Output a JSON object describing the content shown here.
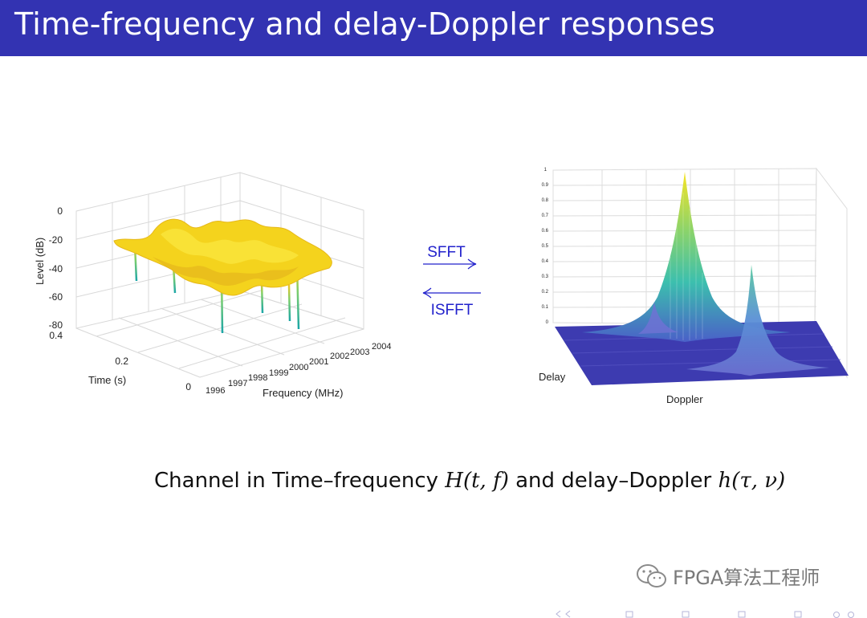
{
  "slide": {
    "title": "Time-frequency and delay-Doppler responses",
    "caption_prefix": "Channel in Time–frequency",
    "caption_tf_symbol": "H(t, f)",
    "caption_middle": "and delay–Doppler",
    "caption_dd_symbol": "h(τ, ν)"
  },
  "transforms": {
    "forward_label": "SFFT",
    "inverse_label": "ISFFT",
    "color": "#2222cc"
  },
  "left_plot": {
    "zlabel": "Level (dB)",
    "ylabel": "Time (s)",
    "xlabel": "Frequency (MHz)",
    "z_ticks": [
      "0",
      "-20",
      "-40",
      "-60",
      "-80"
    ],
    "y_ticks": [
      "0.4",
      "0.2",
      "0"
    ],
    "x_ticks": [
      "1996",
      "1997",
      "1998",
      "1999",
      "2000",
      "2001",
      "2002",
      "2003",
      "2004"
    ]
  },
  "right_plot": {
    "xlabel": "Doppler",
    "ylabel": "Delay",
    "z_ticks": [
      "1",
      "0.9",
      "0.8",
      "0.7",
      "0.6",
      "0.5",
      "0.4",
      "0.3",
      "0.2",
      "0.1",
      "0"
    ]
  },
  "watermark": {
    "text": "FPGA算法工程师",
    "icon": "wechat-icon"
  },
  "colors": {
    "title_bar": "#3333b2",
    "surface_peak": "#f5e21a",
    "surface_mid": "#3cbfae",
    "surface_base": "#3d3bb0"
  }
}
